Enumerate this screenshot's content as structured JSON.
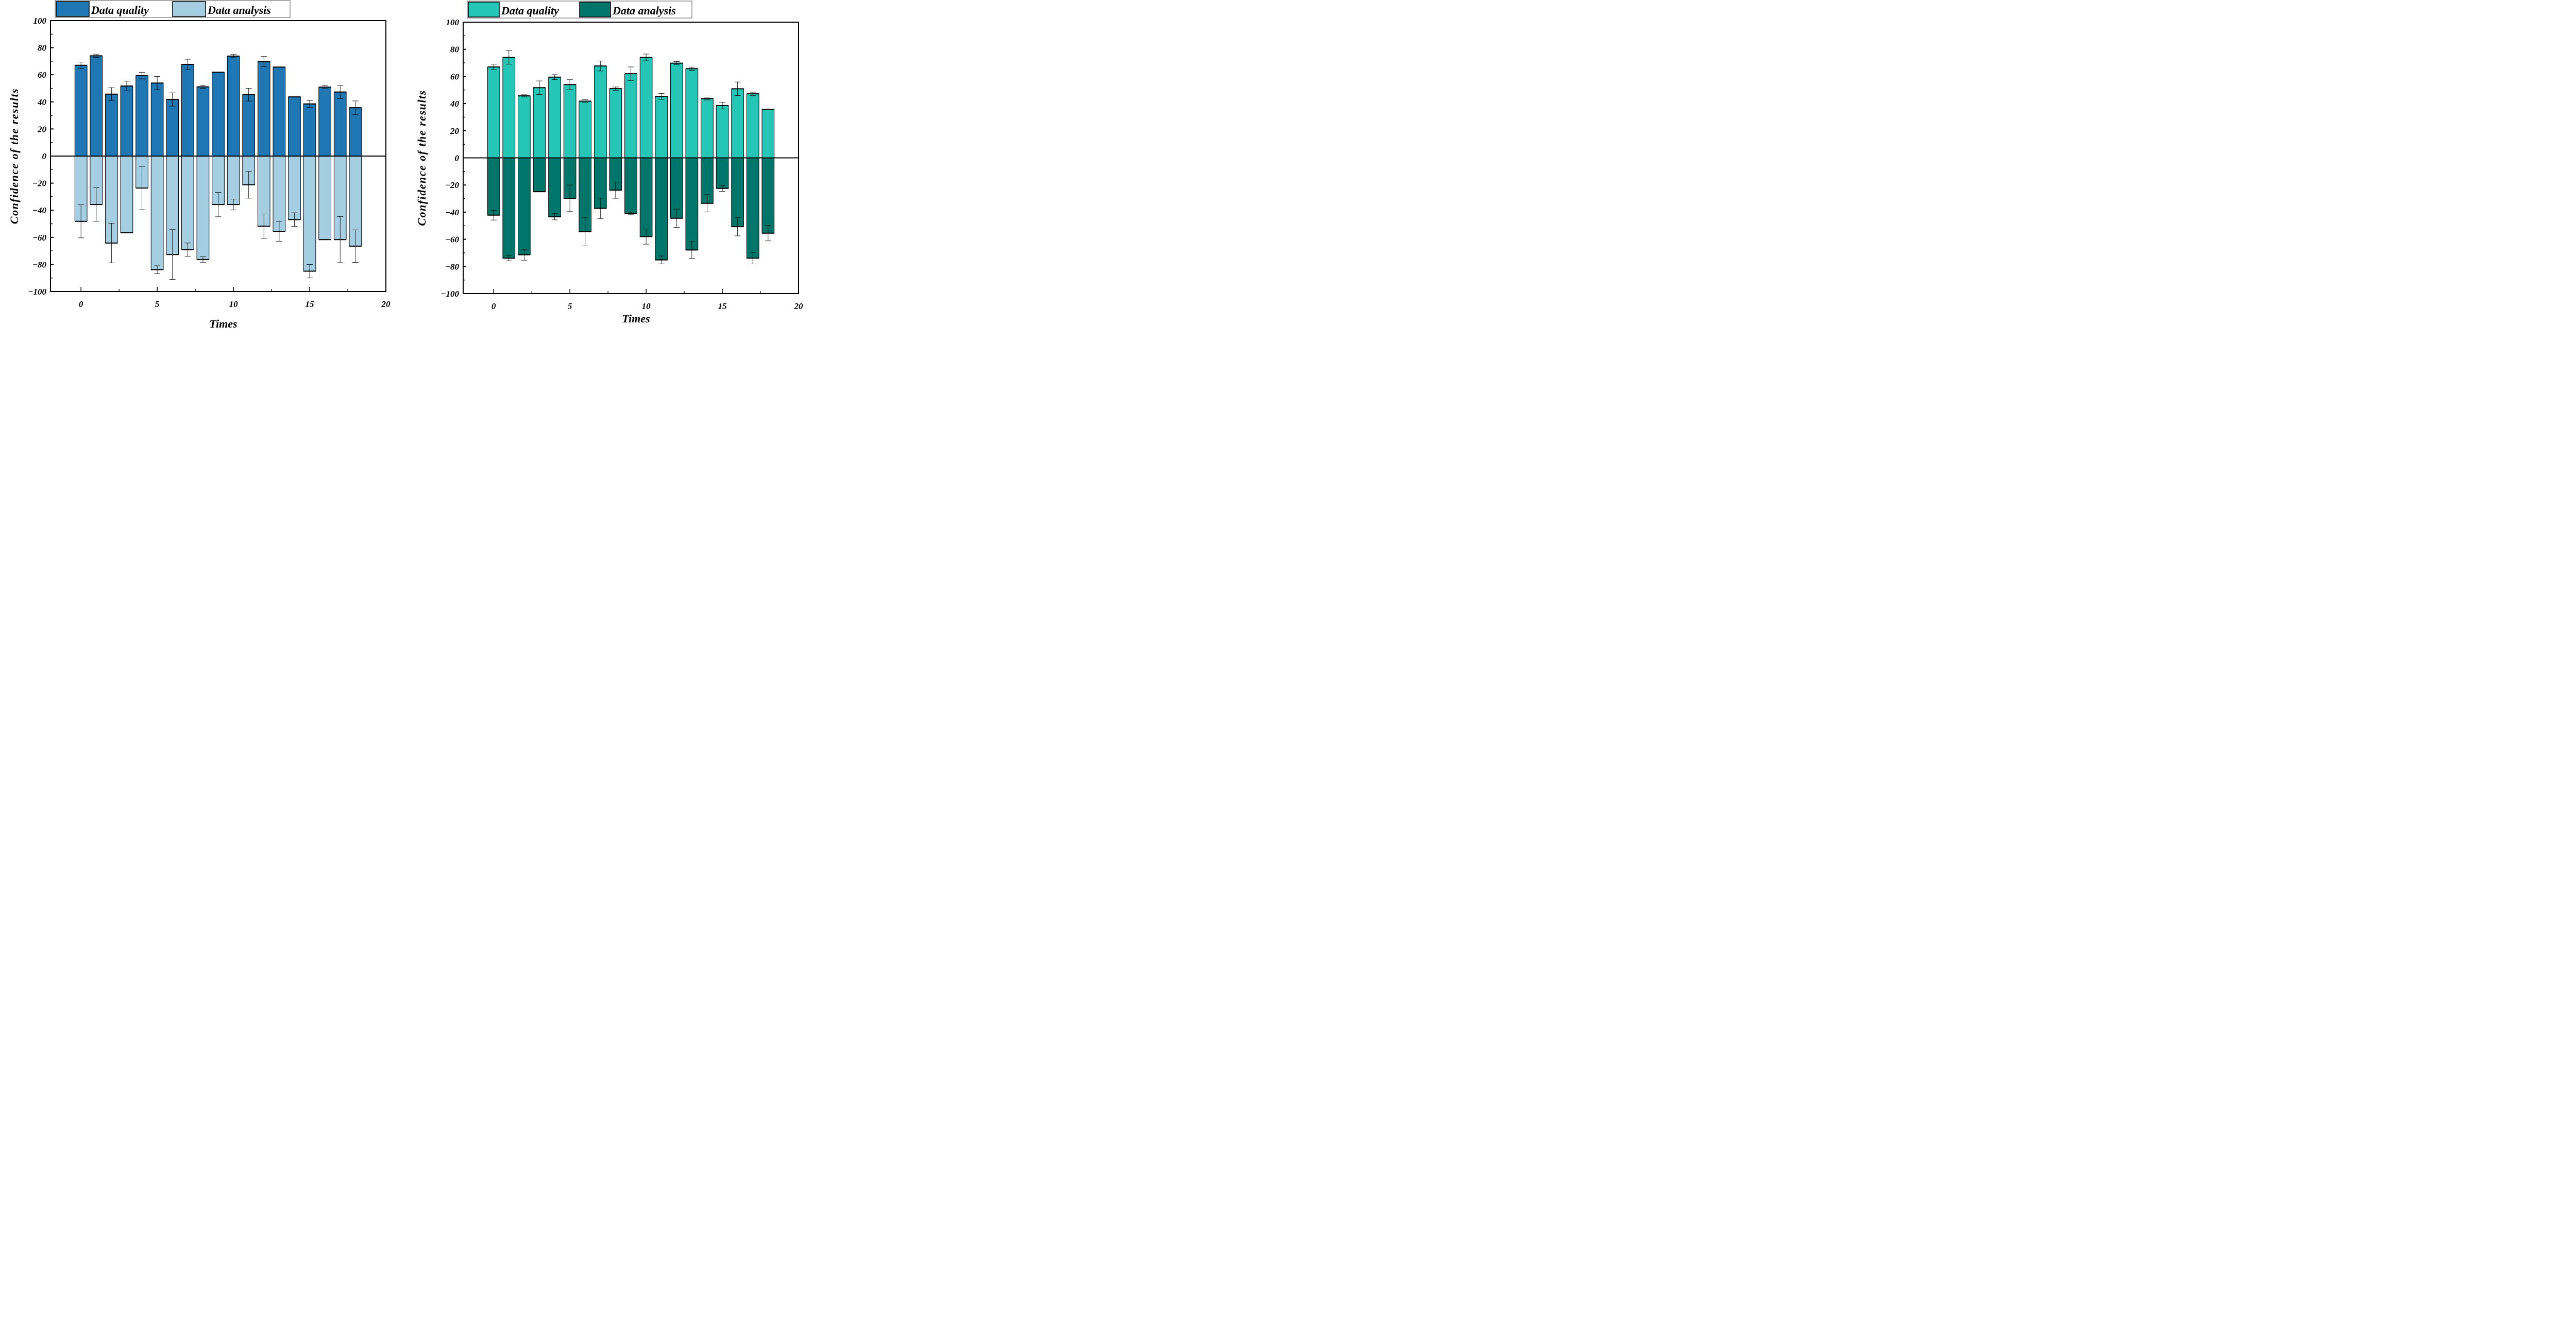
{
  "chart_data": [
    {
      "type": "bar",
      "title": "",
      "xlabel": "Times",
      "ylabel": "Confidence of the results",
      "xlim": [
        -2,
        20
      ],
      "ylim": [
        -100,
        100
      ],
      "xticks": [
        "0",
        "5",
        "10",
        "15",
        "20"
      ],
      "yticks": [
        "-100",
        "-80",
        "-60",
        "-40",
        "-20",
        "0",
        "20",
        "40",
        "60",
        "80",
        "100"
      ],
      "legend_position": "top-left-outside",
      "x": [
        0,
        1,
        2,
        3,
        4,
        5,
        6,
        7,
        8,
        9,
        10,
        11,
        12,
        13,
        14,
        15,
        16,
        17,
        18
      ],
      "series": [
        {
          "name": "Data quality",
          "color": "#1f77b4",
          "values": [
            67,
            74,
            45.7,
            51.7,
            59.4,
            53.9,
            41.8,
            67.7,
            51.1,
            61.9,
            73.8,
            45.3,
            69.8,
            65.7,
            43.7,
            38.5,
            50.9,
            47.3,
            35.7
          ],
          "errors": [
            2.4,
            1.2,
            4.8,
            3.6,
            2.4,
            4.9,
            4.9,
            3.8,
            1.2,
            0,
            1.2,
            4.7,
            3.7,
            0,
            0,
            2.5,
            1.2,
            4.8,
            5.0
          ]
        },
        {
          "name": "Data analysis",
          "color": "#a6cee3",
          "values": [
            -48.2,
            -35.8,
            -64.2,
            -56.6,
            -23.6,
            -83.9,
            -72.7,
            -69.1,
            -76.4,
            -35.8,
            -35.8,
            -21.2,
            -51.8,
            -55.5,
            -46.9,
            -85.0,
            -61.7,
            -61.7,
            -66.5
          ],
          "errors": [
            12.2,
            12.4,
            14.6,
            0,
            16.0,
            2.9,
            18.4,
            4.9,
            2.0,
            9.0,
            4.0,
            9.9,
            9.0,
            7.4,
            5.0,
            5.0,
            0,
            17.0,
            12.0
          ]
        }
      ]
    },
    {
      "type": "bar",
      "title": "",
      "xlabel": "Times",
      "ylabel": "Confidence of the results",
      "xlim": [
        -2,
        20
      ],
      "ylim": [
        -100,
        100
      ],
      "xticks": [
        "0",
        "5",
        "10",
        "15",
        "20"
      ],
      "yticks": [
        "-100",
        "-80",
        "-60",
        "-40",
        "-20",
        "0",
        "20",
        "40",
        "60",
        "80",
        "100"
      ],
      "legend_position": "top-left-outside",
      "x": [
        0,
        1,
        2,
        3,
        4,
        5,
        6,
        7,
        8,
        9,
        10,
        11,
        12,
        13,
        14,
        15,
        16,
        17,
        18
      ],
      "series": [
        {
          "name": "Data quality",
          "color": "#26c6b6",
          "values": [
            67,
            74,
            45.7,
            51.7,
            59.5,
            54,
            41.8,
            67.7,
            51,
            62,
            74,
            45.3,
            69.8,
            65.7,
            43.7,
            38.5,
            50.9,
            47.2,
            35.7
          ],
          "errors": [
            2.0,
            5.0,
            0.8,
            5.0,
            1.8,
            3.8,
            1.2,
            3.7,
            1.2,
            5.0,
            2.5,
            2.2,
            1.2,
            1.2,
            1.0,
            2.5,
            5.0,
            1.2,
            0
          ]
        },
        {
          "name": "Data analysis",
          "color": "#00756a",
          "values": [
            -42.2,
            -73.9,
            -71.4,
            -24.9,
            -43.4,
            -29.8,
            -54.4,
            -37.2,
            -23.8,
            -40.9,
            -58.0,
            -75.2,
            -44.5,
            -67.9,
            -33.5,
            -22.5,
            -50.7,
            -73.9,
            -55.5
          ],
          "errors": [
            3.6,
            2.0,
            4.0,
            0,
            2.3,
            9.8,
            10.5,
            7.5,
            6.0,
            1.0,
            5.6,
            2.9,
            6.7,
            6.2,
            6.4,
            2.2,
            6.8,
            4.3,
            5.7
          ]
        }
      ]
    }
  ]
}
